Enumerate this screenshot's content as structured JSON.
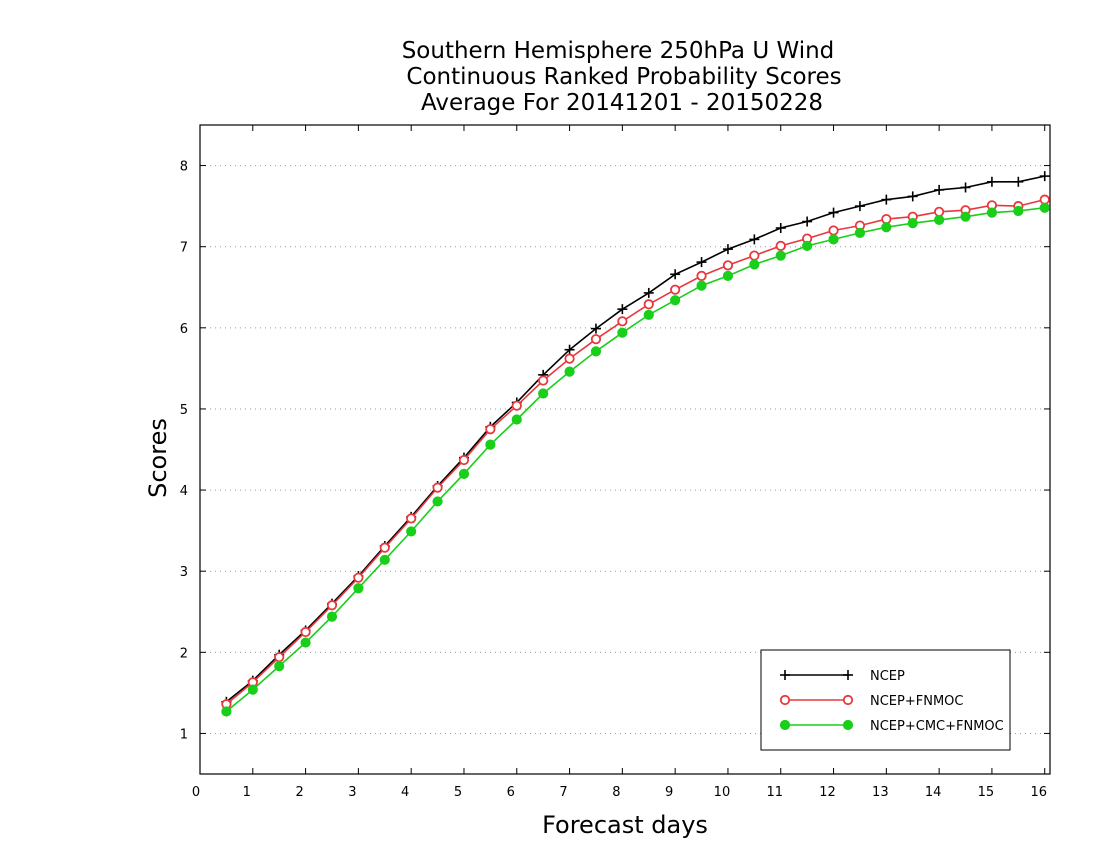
{
  "chart_data": {
    "type": "line",
    "title": [
      "Southern Hemisphere 250hPa U Wind",
      "Continuous Ranked Probability Scores",
      "Average For 20141201 - 20150228"
    ],
    "xlabel": "Forecast days",
    "ylabel": "Scores",
    "xlim": [
      0,
      16.1
    ],
    "ylim": [
      0.5,
      8.5
    ],
    "xticks": [
      0,
      1,
      2,
      3,
      4,
      5,
      6,
      7,
      8,
      9,
      10,
      11,
      12,
      13,
      14,
      15,
      16
    ],
    "xtick_labels": [
      "0",
      "1",
      "2",
      "3",
      "4",
      "5",
      "6",
      "7",
      "8",
      "9",
      "10",
      "11",
      "12",
      "13",
      "14",
      "15",
      "16"
    ],
    "yticks": [
      1,
      2,
      3,
      4,
      5,
      6,
      7,
      8
    ],
    "ytick_labels": [
      "1",
      "2",
      "3",
      "4",
      "5",
      "6",
      "7",
      "8"
    ],
    "grid": "horizontal-dotted",
    "legend_position": "bottom-right",
    "x": [
      0.5,
      1,
      1.5,
      2,
      2.5,
      3,
      3.5,
      4,
      4.5,
      5,
      5.5,
      6,
      6.5,
      7,
      7.5,
      8,
      8.5,
      9,
      9.5,
      10,
      10.5,
      11,
      11.5,
      12,
      12.5,
      13,
      13.5,
      14,
      14.5,
      15,
      15.5,
      16
    ],
    "series": [
      {
        "name": "NCEP",
        "color": "#000000",
        "marker": "plus",
        "values": [
          1.39,
          1.65,
          1.97,
          2.27,
          2.6,
          2.94,
          3.31,
          3.67,
          4.05,
          4.4,
          4.78,
          5.08,
          5.42,
          5.73,
          5.99,
          6.23,
          6.43,
          6.66,
          6.81,
          6.97,
          7.09,
          7.23,
          7.31,
          7.42,
          7.5,
          7.58,
          7.62,
          7.7,
          7.73,
          7.8,
          7.8,
          7.87
        ]
      },
      {
        "name": "NCEP+FNMOC",
        "color": "#e8383d",
        "marker": "open-circle",
        "values": [
          1.36,
          1.63,
          1.94,
          2.25,
          2.58,
          2.92,
          3.29,
          3.65,
          4.03,
          4.37,
          4.75,
          5.04,
          5.35,
          5.62,
          5.86,
          6.08,
          6.29,
          6.47,
          6.64,
          6.77,
          6.89,
          7.01,
          7.1,
          7.2,
          7.26,
          7.34,
          7.37,
          7.43,
          7.45,
          7.51,
          7.5,
          7.58
        ]
      },
      {
        "name": "NCEP+CMC+FNMOC",
        "color": "#19cf19",
        "marker": "filled-circle",
        "values": [
          1.27,
          1.54,
          1.83,
          2.12,
          2.44,
          2.79,
          3.14,
          3.49,
          3.86,
          4.2,
          4.56,
          4.87,
          5.19,
          5.46,
          5.71,
          5.94,
          6.16,
          6.34,
          6.52,
          6.64,
          6.78,
          6.89,
          7.01,
          7.09,
          7.17,
          7.24,
          7.29,
          7.33,
          7.37,
          7.42,
          7.44,
          7.48
        ]
      }
    ]
  }
}
